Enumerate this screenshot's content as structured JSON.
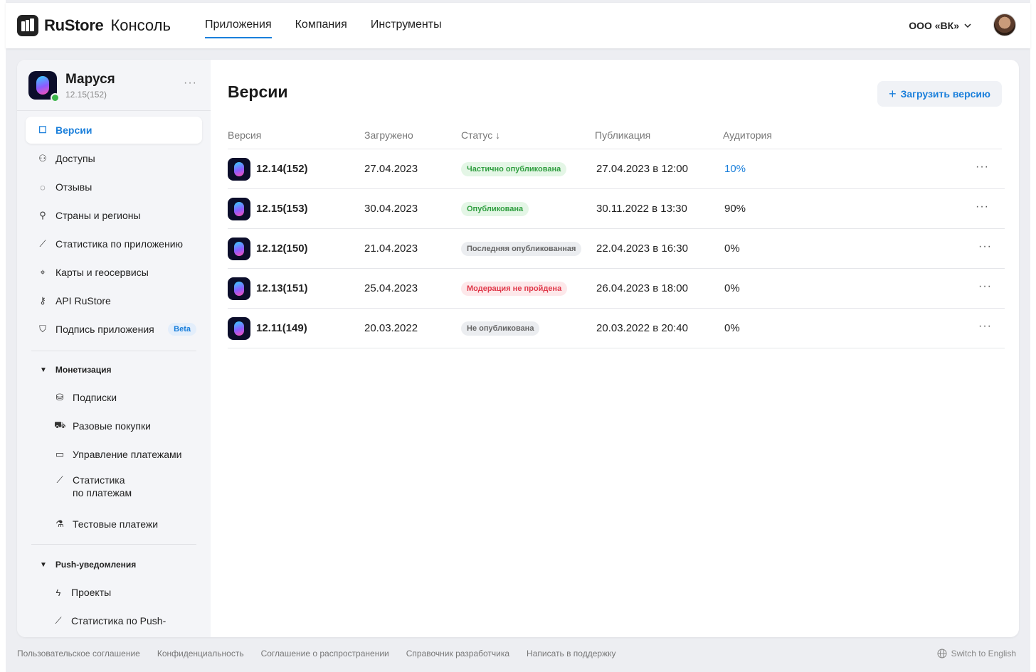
{
  "header": {
    "brand": "RuStore",
    "brand_sub": "Консоль",
    "nav": [
      "Приложения",
      "Компания",
      "Инструменты"
    ],
    "org": "ООО «ВК»"
  },
  "app": {
    "name": "Маруся",
    "version": "12.15(152)"
  },
  "sidebar": {
    "items": [
      {
        "label": "Версии",
        "icon": "versions-icon"
      },
      {
        "label": "Доступы",
        "icon": "users-icon"
      },
      {
        "label": "Отзывы",
        "icon": "comment-icon"
      },
      {
        "label": "Страны и регионы",
        "icon": "pin-icon"
      },
      {
        "label": "Статистика по приложению",
        "icon": "chart-icon"
      },
      {
        "label": "Карты и геосервисы",
        "icon": "map-icon"
      },
      {
        "label": "API RuStore",
        "icon": "key-icon"
      },
      {
        "label": "Подпись приложения",
        "icon": "shield-icon"
      }
    ],
    "beta": "Beta",
    "monetization": {
      "title": "Монетизация",
      "items": [
        "Подписки",
        "Разовые покупки",
        "Управление платежами",
        "Статистика",
        "по платежам",
        "Тестовые платежи"
      ]
    },
    "push": {
      "title": "Push-уведомления",
      "items": [
        "Проекты",
        "Статистика по Push-"
      ]
    }
  },
  "main": {
    "title": "Версии",
    "upload_label": "Загрузить версию",
    "columns": [
      "Версия",
      "Загружено",
      "Статус ↓",
      "Публикация",
      "Аудитория"
    ],
    "rows": [
      {
        "version": "12.14(152)",
        "uploaded": "27.04.2023",
        "status": "Частично опубликована",
        "published": "27.04.2023 в 12:00",
        "audience": "10%"
      },
      {
        "version": "12.15(153)",
        "uploaded": "30.04.2023",
        "status": "Опубликована",
        "published": "30.11.2022 в 13:30",
        "audience": "90%"
      },
      {
        "version": "12.12(150)",
        "uploaded": "21.04.2023",
        "status": "Последняя опубликованная",
        "published": "22.04.2023 в 16:30",
        "audience": "0%"
      },
      {
        "version": "12.13(151)",
        "uploaded": "25.04.2023",
        "status": "Модерация не пройдена",
        "published": "26.04.2023 в 18:00",
        "audience": "0%"
      },
      {
        "version": "12.11(149)",
        "uploaded": "20.03.2022",
        "status": "Не опубликована",
        "published": "20.03.2022 в 20:40",
        "audience": "0%"
      }
    ],
    "more": "···"
  },
  "colors": {
    "accent": "#1a7fdb",
    "success": "#3bb54a",
    "danger": "#e0394a"
  },
  "footer": {
    "links": [
      "Пользовательское соглашение",
      "Конфиденциальность",
      "Соглашение о распространении",
      "Справочник разработчика",
      "Написать в поддержку"
    ],
    "switch_language": "Switch to English"
  }
}
